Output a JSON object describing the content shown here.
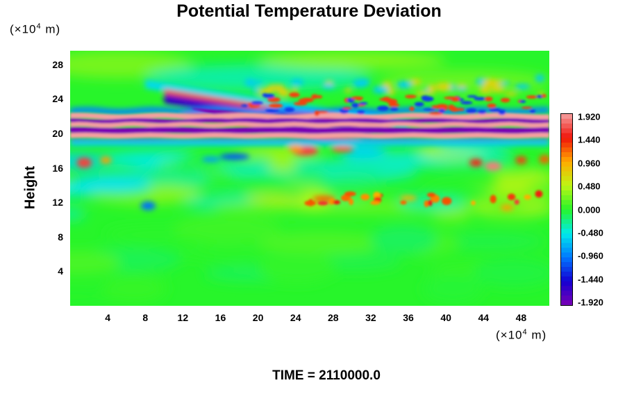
{
  "chart_data": {
    "type": "heatmap",
    "title": "Potential Temperature Deviation",
    "ylabel": "Height",
    "xlabel": "",
    "x_unit": {
      "pre": "(×10",
      "exp": "4",
      "post": " m)"
    },
    "y_unit": {
      "pre": "(×10",
      "exp": "4",
      "post": " m)"
    },
    "x_ticks": [
      "4",
      "8",
      "12",
      "16",
      "20",
      "24",
      "28",
      "32",
      "36",
      "40",
      "44",
      "48"
    ],
    "x_tick_values": [
      4,
      8,
      12,
      16,
      20,
      24,
      28,
      32,
      36,
      40,
      44,
      48
    ],
    "y_ticks": [
      "4",
      "8",
      "12",
      "16",
      "20",
      "24",
      "28"
    ],
    "y_tick_values": [
      4,
      8,
      12,
      16,
      20,
      24,
      28
    ],
    "xlim": [
      0,
      51
    ],
    "ylim": [
      0,
      29.6
    ],
    "colorbar": {
      "min": -1.92,
      "max": 1.92,
      "labels": [
        "1.920",
        "1.440",
        "0.960",
        "0.480",
        "0.000",
        "-0.480",
        "-0.960",
        "-1.440",
        "-1.920"
      ],
      "label_values": [
        1.92,
        1.44,
        0.96,
        0.48,
        0.0,
        -0.48,
        -0.96,
        -1.44,
        -1.92
      ],
      "colormap": "rainbow: purple (negative) → blue → cyan → green (zero) → yellow → orange → red → pink (positive)"
    },
    "annotation": "TIME = 2110000.0",
    "features": [
      {
        "kind": "band",
        "description": "strong alternating positive/negative layers",
        "y_range": [
          19.5,
          22.5
        ],
        "x_range": [
          0,
          51
        ]
      },
      {
        "kind": "band",
        "description": "tilted wave packet descending eastward",
        "y_range": [
          20.5,
          24.5
        ],
        "x_range": [
          10,
          30
        ]
      },
      {
        "kind": "patches",
        "description": "weak perturbations",
        "y_range": [
          10,
          18
        ],
        "x_range": [
          0,
          51
        ]
      },
      {
        "kind": "calm",
        "description": "near-zero deviation",
        "y_range": [
          0,
          10
        ],
        "x_range": [
          0,
          51
        ]
      }
    ]
  },
  "colors": {
    "background": "#ffffff",
    "zero": "#27f52a",
    "positive_max": "#f5a0a0",
    "negative_max": "#7a00b4",
    "neg_band": "#8a00c8",
    "pos_band": "#f7b2b2"
  }
}
